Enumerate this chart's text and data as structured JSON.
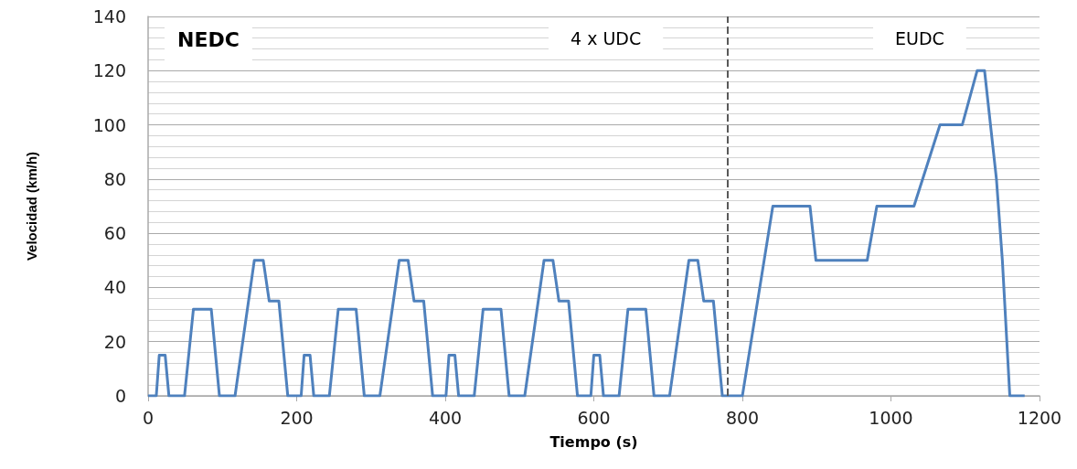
{
  "chart_data": {
    "type": "line",
    "xlabel": "Tiempo (s)",
    "ylabel": "Velocidad (km/h)",
    "annotations": [
      "NEDC",
      "4 x UDC",
      "EUDC"
    ],
    "x": [
      0,
      11,
      15,
      23,
      28,
      49,
      61,
      85,
      96,
      117,
      143,
      155,
      163,
      176,
      188,
      195,
      206,
      210,
      218,
      223,
      244,
      256,
      280,
      291,
      312,
      338,
      350,
      358,
      371,
      383,
      390,
      401,
      405,
      413,
      418,
      439,
      451,
      475,
      486,
      507,
      533,
      545,
      553,
      566,
      578,
      585,
      596,
      600,
      608,
      613,
      634,
      646,
      670,
      681,
      702,
      728,
      740,
      748,
      761,
      773,
      780,
      800,
      841,
      891,
      899,
      968,
      981,
      1031,
      1066,
      1096,
      1116,
      1126,
      1142,
      1150,
      1160,
      1180
    ],
    "series": [
      {
        "color": "#4f81bd",
        "values": [
          0,
          0,
          15,
          15,
          0,
          0,
          32,
          32,
          0,
          0,
          50,
          50,
          35,
          35,
          0,
          0,
          0,
          15,
          15,
          0,
          0,
          32,
          32,
          0,
          0,
          50,
          50,
          35,
          35,
          0,
          0,
          0,
          15,
          15,
          0,
          0,
          32,
          32,
          0,
          0,
          50,
          50,
          35,
          35,
          0,
          0,
          0,
          15,
          15,
          0,
          0,
          32,
          32,
          0,
          0,
          50,
          50,
          35,
          35,
          0,
          0,
          0,
          70,
          70,
          50,
          50,
          70,
          70,
          100,
          100,
          120,
          120,
          80,
          50,
          0,
          0
        ]
      }
    ],
    "xlim": [
      0,
      1200
    ],
    "xticks": [
      0,
      200,
      400,
      600,
      800,
      1000,
      1200
    ],
    "ylim": [
      0,
      140
    ],
    "yticks": [
      0,
      20,
      40,
      60,
      80,
      100,
      120,
      140
    ],
    "ref_lines": [
      {
        "axis": "x",
        "value": 780,
        "color": "#595959",
        "line_style": "dashed"
      }
    ],
    "grid": "y",
    "marker": "none",
    "line_style": "solid"
  }
}
